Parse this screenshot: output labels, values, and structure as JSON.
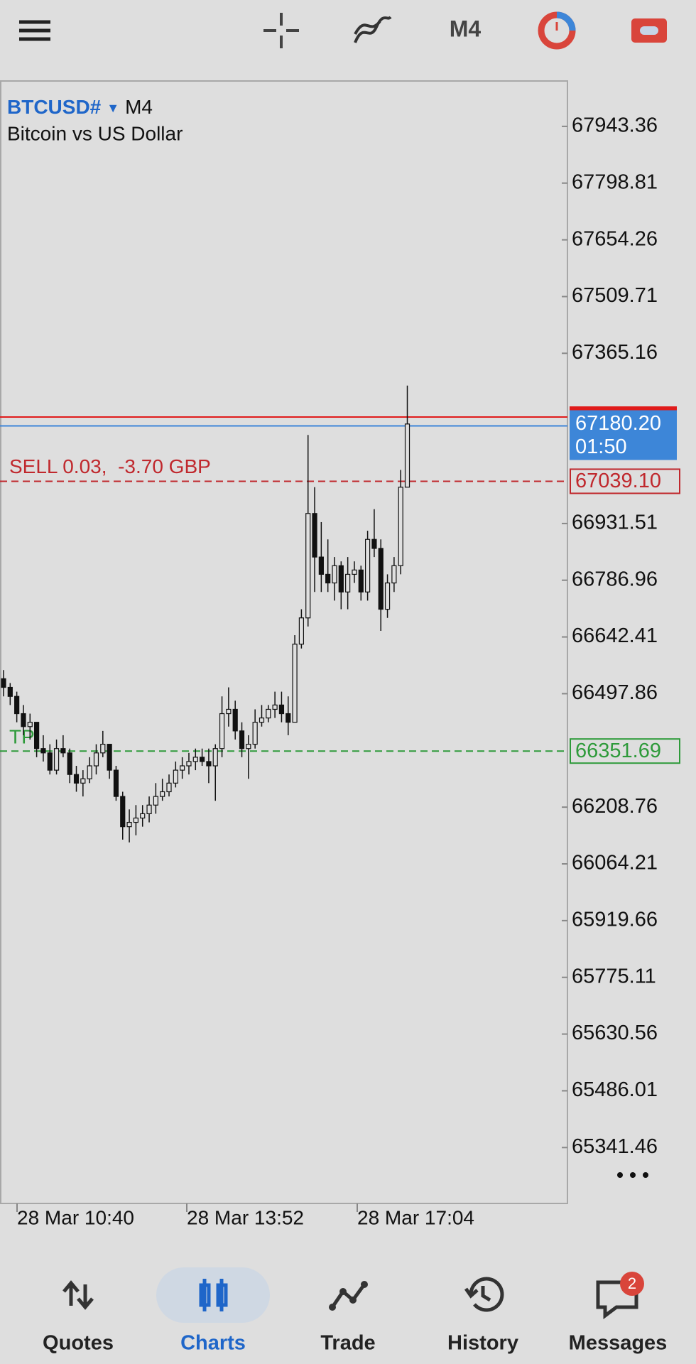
{
  "toolbar": {
    "timeframe": "M4"
  },
  "chart_data": {
    "type": "candlestick",
    "symbol": "BTCUSD#",
    "timeframe": "M4",
    "description": "Bitcoin vs US Dollar",
    "ylim": [
      65199,
      68059
    ],
    "yticks": [
      67943.36,
      67798.81,
      67654.26,
      67509.71,
      67365.16,
      66931.51,
      66786.96,
      66642.41,
      66497.86,
      66208.76,
      66064.21,
      65919.66,
      65775.11,
      65630.56,
      65486.01,
      65341.46
    ],
    "x_labels": [
      "28 Mar 10:40",
      "28 Mar 13:52",
      "28 Mar 17:04"
    ],
    "up_color": "#e0e0e0",
    "down_color": "#111111",
    "ohlc": [
      [
        66536,
        66558,
        66491,
        66514
      ],
      [
        66514,
        66525,
        66469,
        66491
      ],
      [
        66491,
        66503,
        66425,
        66447
      ],
      [
        66447,
        66469,
        66392,
        66414
      ],
      [
        66414,
        66447,
        66381,
        66425
      ],
      [
        66425,
        66425,
        66336,
        66358
      ],
      [
        66358,
        66392,
        66325,
        66347
      ],
      [
        66347,
        66369,
        66292,
        66303
      ],
      [
        66303,
        66381,
        66292,
        66358
      ],
      [
        66358,
        66392,
        66336,
        66347
      ],
      [
        66347,
        66358,
        66270,
        66292
      ],
      [
        66292,
        66314,
        66248,
        66270
      ],
      [
        66270,
        66303,
        66236,
        66281
      ],
      [
        66281,
        66336,
        66270,
        66314
      ],
      [
        66314,
        66369,
        66292,
        66347
      ],
      [
        66347,
        66403,
        66336,
        66369
      ],
      [
        66369,
        66369,
        66281,
        66303
      ],
      [
        66303,
        66314,
        66225,
        66236
      ],
      [
        66236,
        66248,
        66126,
        66159
      ],
      [
        66159,
        66203,
        66119,
        66170
      ],
      [
        66170,
        66214,
        66137,
        66181
      ],
      [
        66181,
        66214,
        66159,
        66192
      ],
      [
        66192,
        66236,
        66170,
        66214
      ],
      [
        66214,
        66270,
        66192,
        66236
      ],
      [
        66236,
        66281,
        66225,
        66248
      ],
      [
        66248,
        66292,
        66236,
        66270
      ],
      [
        66270,
        66325,
        66259,
        66303
      ],
      [
        66303,
        66336,
        66281,
        66314
      ],
      [
        66314,
        66347,
        66292,
        66325
      ],
      [
        66325,
        66358,
        66303,
        66336
      ],
      [
        66336,
        66358,
        66314,
        66325
      ],
      [
        66325,
        66358,
        66270,
        66314
      ],
      [
        66314,
        66369,
        66225,
        66358
      ],
      [
        66358,
        66491,
        66336,
        66447
      ],
      [
        66447,
        66514,
        66414,
        66458
      ],
      [
        66458,
        66480,
        66381,
        66403
      ],
      [
        66403,
        66425,
        66336,
        66358
      ],
      [
        66358,
        66392,
        66281,
        66369
      ],
      [
        66369,
        66458,
        66358,
        66425
      ],
      [
        66425,
        66469,
        66414,
        66436
      ],
      [
        66436,
        66469,
        66425,
        66458
      ],
      [
        66458,
        66503,
        66436,
        66469
      ],
      [
        66469,
        66503,
        66425,
        66447
      ],
      [
        66447,
        66491,
        66392,
        66425
      ],
      [
        66425,
        66647,
        66425,
        66624
      ],
      [
        66624,
        66713,
        66613,
        66691
      ],
      [
        66691,
        67157,
        66669,
        66957
      ],
      [
        66957,
        67024,
        66757,
        66846
      ],
      [
        66846,
        66935,
        66757,
        66802
      ],
      [
        66802,
        66891,
        66757,
        66780
      ],
      [
        66780,
        66846,
        66735,
        66824
      ],
      [
        66824,
        66835,
        66713,
        66757
      ],
      [
        66757,
        66846,
        66713,
        66802
      ],
      [
        66802,
        66835,
        66780,
        66813
      ],
      [
        66813,
        66824,
        66735,
        66757
      ],
      [
        66757,
        66913,
        66735,
        66891
      ],
      [
        66891,
        66968,
        66846,
        66868
      ],
      [
        66868,
        66891,
        66658,
        66713
      ],
      [
        66713,
        66802,
        66691,
        66780
      ],
      [
        66780,
        66846,
        66757,
        66824
      ],
      [
        66824,
        67068,
        66802,
        67024
      ],
      [
        67024,
        67283,
        67024,
        67185
      ]
    ],
    "ask_line": {
      "value": 67202.8,
      "color": "#e01b1b"
    },
    "bid_line": {
      "value": {
        "value": 67180.2,
        "label": "67180.20"
      },
      "countdown": "01:50",
      "color": "#3d86d8"
    },
    "sell_line": {
      "text": "SELL 0.03,  -3.70 GBP",
      "value": {
        "value": 67039.1,
        "label": "67039.10"
      },
      "color": "#c0282d"
    },
    "tp_line": {
      "text": "TP",
      "value": 66351.69,
      "color": "#2e9a3a"
    }
  },
  "nav": {
    "items": [
      "Quotes",
      "Charts",
      "Trade",
      "History",
      "Messages"
    ],
    "badge": 2
  }
}
